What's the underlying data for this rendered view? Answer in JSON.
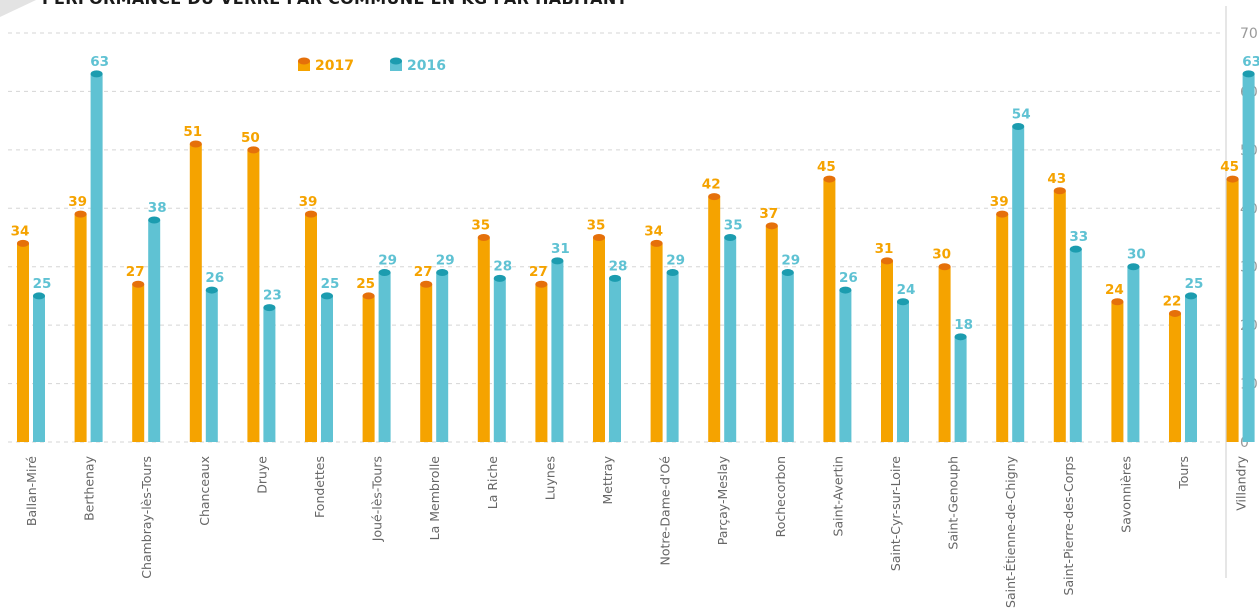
{
  "chart_data": {
    "type": "bar",
    "title": "PERFORMANCE DU VERRE PAR COMMUNE EN KG PAR HABITANT",
    "categories": [
      "Ballan-Miré",
      "Berthenay",
      "Chambray-lès-Tours",
      "Chanceaux",
      "Druye",
      "Fondettes",
      "Joué-lès-Tours",
      "La Membrolle",
      "La Riche",
      "Luynes",
      "Mettray",
      "Notre-Dame-d'Oé",
      "Parçay-Meslay",
      "Rochecorbon",
      "Saint-Avertin",
      "Saint-Cyr-sur-Loire",
      "Saint-Genouph",
      "Saint-Étienne-de-Chigny",
      "Saint-Pierre-des-Corps",
      "Savonnières",
      "Tours",
      "Villandry"
    ],
    "series": [
      {
        "name": "2017",
        "color": "#f5a300",
        "top_color": "#e5700a",
        "values": [
          34,
          39,
          27,
          51,
          50,
          39,
          25,
          27,
          35,
          27,
          35,
          34,
          42,
          37,
          45,
          31,
          30,
          39,
          43,
          24,
          22,
          45
        ]
      },
      {
        "name": "2016",
        "color": "#5fc2d3",
        "top_color": "#1c9caf",
        "values": [
          25,
          63,
          38,
          26,
          23,
          25,
          29,
          29,
          28,
          31,
          28,
          29,
          35,
          29,
          26,
          24,
          18,
          54,
          33,
          30,
          25,
          63
        ]
      }
    ],
    "xlabel": "",
    "ylabel": "",
    "ylim": [
      0,
      70
    ],
    "yticks": [
      0,
      10,
      20,
      30,
      40,
      50,
      60,
      70
    ],
    "grid": true,
    "legend_position": "top-left"
  }
}
